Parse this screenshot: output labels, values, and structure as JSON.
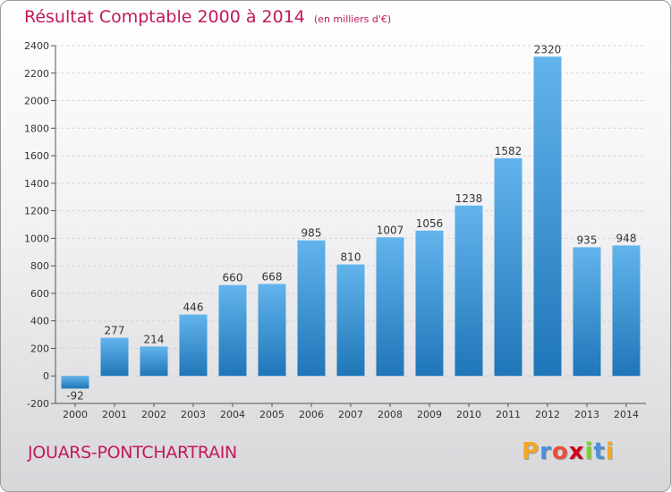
{
  "header": {
    "title": "Résultat Comptable 2000 à 2014",
    "unit": "(en milliers d'€)"
  },
  "footer": {
    "commune": "JOUARS-PONTCHARTRAIN",
    "logo_letters": [
      "P",
      "r",
      "o",
      "x",
      "i",
      "t",
      "i"
    ],
    "logo_colors": [
      "#f5a623",
      "#4a90d9",
      "#e94e3c",
      "#d0021b",
      "#7ed321",
      "#4a90d9",
      "#f5a623"
    ]
  },
  "colors": {
    "title": "#c2185b",
    "bar_light": "#62b4ec",
    "bar_dark": "#1f76b8"
  },
  "chart_data": {
    "type": "bar",
    "categories": [
      "2000",
      "2001",
      "2002",
      "2003",
      "2004",
      "2005",
      "2006",
      "2007",
      "2008",
      "2009",
      "2010",
      "2011",
      "2012",
      "2013",
      "2014"
    ],
    "values": [
      -92,
      277,
      214,
      446,
      660,
      668,
      985,
      810,
      1007,
      1056,
      1238,
      1582,
      2320,
      935,
      948
    ],
    "data_labels": [
      "-92",
      "277",
      "214",
      "446",
      "660",
      "668",
      "985",
      "810",
      "1007",
      "1056",
      "1238",
      "1582",
      "2320",
      "935",
      "948"
    ],
    "yticks": [
      -200,
      0,
      200,
      400,
      600,
      800,
      1000,
      1200,
      1400,
      1600,
      1800,
      2000,
      2200,
      2400
    ],
    "ylim": [
      -200,
      2400
    ],
    "grid": true,
    "legend": "none"
  }
}
